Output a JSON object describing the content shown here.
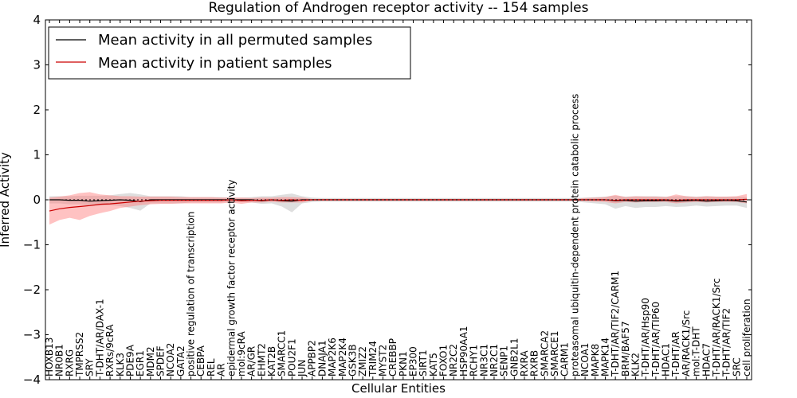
{
  "chart_data": {
    "type": "line",
    "title": "Regulation of Androgen receptor activity -- 154 samples",
    "xlabel": "Cellular Entities",
    "ylabel": "Inferred Activity",
    "ylim": [
      -4,
      4
    ],
    "yticks": [
      "4",
      "3",
      "2",
      "1",
      "0",
      "−1",
      "−2",
      "−3",
      "−4"
    ],
    "grid": false,
    "legend_position": "top-left",
    "colors": {
      "permuted_line": "#000000",
      "permuted_band": "#c8c8c8",
      "patient_line": "#cc0000",
      "patient_band": "#ff7777"
    },
    "categories": [
      "HOXB13",
      "NR0B1",
      "RXRG",
      "TMPRSS2",
      "SRY",
      "T-DHT/AR/DAX-1",
      "RXRs/9cRA",
      "KLK3",
      "PDE9A",
      "EGR1",
      "MDM2",
      "SPDEF",
      "NCOA2",
      "GATA2",
      "positive regulation of transcription",
      "CEBPA",
      "REL",
      "AR",
      "epidermal growth factor receptor activity",
      "mol:9cRA",
      "AR/GR",
      "EHMT2",
      "KAT2B",
      "SMARCC1",
      "POU2F1",
      "JUN",
      "APPBP2",
      "DNAJA1",
      "MAP2K6",
      "MAP2K4",
      "GSK3B",
      "ZMIZ2",
      "TRIM24",
      "MYST2",
      "CREBBP",
      "PKN1",
      "EP300",
      "SIRT1",
      "KAT5",
      "FOXO1",
      "NR2C2",
      "HSP90AA1",
      "RCHY1",
      "NR3C1",
      "NR2C1",
      "SENP1",
      "GNB2L1",
      "RXRA",
      "RXRB",
      "SMARCA2",
      "SMARCE1",
      "CARM1",
      "proteasomal ubiquitin-dependent protein catabolic process",
      "NCOA1",
      "MAPK8",
      "MAPK14",
      "T-DHT/AR/TIF2/CARM1",
      "BRM/BAF57",
      "KLK2",
      "T-DHT/AR/Hsp90",
      "T-DHT/AR/TIP60",
      "HDAC1",
      "T-DHT/AR",
      "AR/RACK1/Src",
      "mol:T-DHT",
      "HDAC7",
      "T-DHT/AR/RACK1/Src",
      "T-DHT/AR/TIF2",
      "SRC",
      "cell proliferation"
    ],
    "series": [
      {
        "name": "Mean activity in all permuted samples",
        "mean": [
          0,
          0,
          -0.01,
          -0.01,
          -0.03,
          -0.02,
          -0.01,
          0,
          -0.01,
          -0.04,
          0,
          0,
          0,
          0,
          0,
          0,
          0,
          0,
          0,
          0,
          0,
          -0.02,
          0,
          -0.02,
          -0.03,
          0,
          0,
          0,
          0,
          0,
          0,
          0,
          0,
          0,
          0,
          0,
          0,
          0,
          0,
          0,
          0,
          0,
          0,
          0,
          0,
          0,
          0,
          0,
          0,
          0,
          0,
          0,
          0,
          0,
          0,
          0,
          -0.02,
          -0.01,
          -0.03,
          -0.02,
          -0.02,
          -0.01,
          -0.03,
          -0.02,
          -0.01,
          -0.03,
          -0.02,
          -0.01,
          -0.02,
          -0.05
        ],
        "upper": [
          0.08,
          0.08,
          0.08,
          0.09,
          0.09,
          0.09,
          0.1,
          0.13,
          0.15,
          0.12,
          0.08,
          0.08,
          0.08,
          0.08,
          0.06,
          0.06,
          0.06,
          0.06,
          0.05,
          0.05,
          0.06,
          0.08,
          0.08,
          0.11,
          0.14,
          0.08,
          0.05,
          0.04,
          0.04,
          0.04,
          0.04,
          0.04,
          0.04,
          0.04,
          0.04,
          0.04,
          0.04,
          0.04,
          0.04,
          0.04,
          0.04,
          0.04,
          0.04,
          0.04,
          0.04,
          0.04,
          0.04,
          0.04,
          0.04,
          0.04,
          0.04,
          0.04,
          0.04,
          0.05,
          0.06,
          0.07,
          0.09,
          0.07,
          0.08,
          0.08,
          0.08,
          0.07,
          0.08,
          0.08,
          0.07,
          0.08,
          0.07,
          0.07,
          0.07,
          0.06
        ],
        "lower": [
          -0.08,
          -0.08,
          -0.1,
          -0.1,
          -0.14,
          -0.13,
          -0.12,
          -0.14,
          -0.18,
          -0.24,
          -0.08,
          -0.08,
          -0.08,
          -0.08,
          -0.06,
          -0.06,
          -0.06,
          -0.06,
          -0.05,
          -0.05,
          -0.06,
          -0.09,
          -0.08,
          -0.15,
          -0.28,
          -0.08,
          -0.05,
          -0.04,
          -0.04,
          -0.04,
          -0.04,
          -0.04,
          -0.04,
          -0.04,
          -0.04,
          -0.04,
          -0.04,
          -0.04,
          -0.04,
          -0.04,
          -0.04,
          -0.04,
          -0.04,
          -0.04,
          -0.04,
          -0.04,
          -0.04,
          -0.04,
          -0.04,
          -0.04,
          -0.04,
          -0.04,
          -0.04,
          -0.06,
          -0.08,
          -0.1,
          -0.2,
          -0.14,
          -0.18,
          -0.16,
          -0.16,
          -0.14,
          -0.16,
          -0.15,
          -0.13,
          -0.15,
          -0.14,
          -0.13,
          -0.13,
          -0.18
        ]
      },
      {
        "name": "Mean activity in patient samples",
        "mean": [
          -0.25,
          -0.2,
          -0.17,
          -0.15,
          -0.13,
          -0.1,
          -0.09,
          -0.07,
          -0.05,
          -0.03,
          -0.02,
          -0.01,
          -0.01,
          -0.01,
          -0.01,
          -0.01,
          -0.01,
          -0.01,
          0,
          -0.02,
          -0.01,
          -0.01,
          0,
          -0.01,
          0,
          -0.01,
          0,
          0,
          0,
          0,
          0,
          0,
          0,
          0,
          0,
          0,
          0,
          0,
          0,
          0,
          0,
          0,
          0,
          0,
          0,
          0,
          0,
          0,
          0,
          0,
          0,
          0,
          0,
          0,
          0,
          0,
          -0.01,
          0,
          0,
          0,
          0,
          0,
          -0.01,
          0,
          0,
          0,
          0,
          0,
          0,
          0.01
        ],
        "upper": [
          0.05,
          0.07,
          0.1,
          0.15,
          0.17,
          0.12,
          0.1,
          0.08,
          0.08,
          0.07,
          0.07,
          0.07,
          0.07,
          0.06,
          0.06,
          0.06,
          0.06,
          0.05,
          0.05,
          0.05,
          0.04,
          0.05,
          0.05,
          0.06,
          0.06,
          0.05,
          0.02,
          0.02,
          0.02,
          0.02,
          0.02,
          0.02,
          0.02,
          0.02,
          0.02,
          0.02,
          0.02,
          0.02,
          0.02,
          0.02,
          0.02,
          0.02,
          0.02,
          0.02,
          0.02,
          0.02,
          0.02,
          0.02,
          0.02,
          0.02,
          0.02,
          0.02,
          0.02,
          0.04,
          0.05,
          0.06,
          0.11,
          0.06,
          0.08,
          0.07,
          0.07,
          0.06,
          0.12,
          0.08,
          0.06,
          0.08,
          0.07,
          0.07,
          0.08,
          0.13
        ],
        "lower": [
          -0.55,
          -0.45,
          -0.4,
          -0.45,
          -0.36,
          -0.3,
          -0.25,
          -0.18,
          -0.15,
          -0.12,
          -0.1,
          -0.09,
          -0.09,
          -0.08,
          -0.08,
          -0.08,
          -0.08,
          -0.08,
          -0.06,
          -0.09,
          -0.06,
          -0.06,
          -0.05,
          -0.06,
          -0.06,
          -0.06,
          -0.02,
          -0.02,
          -0.02,
          -0.02,
          -0.02,
          -0.02,
          -0.02,
          -0.02,
          -0.02,
          -0.02,
          -0.02,
          -0.02,
          -0.02,
          -0.02,
          -0.02,
          -0.02,
          -0.02,
          -0.02,
          -0.02,
          -0.02,
          -0.02,
          -0.02,
          -0.02,
          -0.02,
          -0.02,
          -0.02,
          -0.02,
          -0.03,
          -0.04,
          -0.05,
          -0.08,
          -0.05,
          -0.06,
          -0.05,
          -0.05,
          -0.05,
          -0.08,
          -0.06,
          -0.05,
          -0.06,
          -0.05,
          -0.05,
          -0.05,
          -0.08
        ]
      }
    ]
  }
}
